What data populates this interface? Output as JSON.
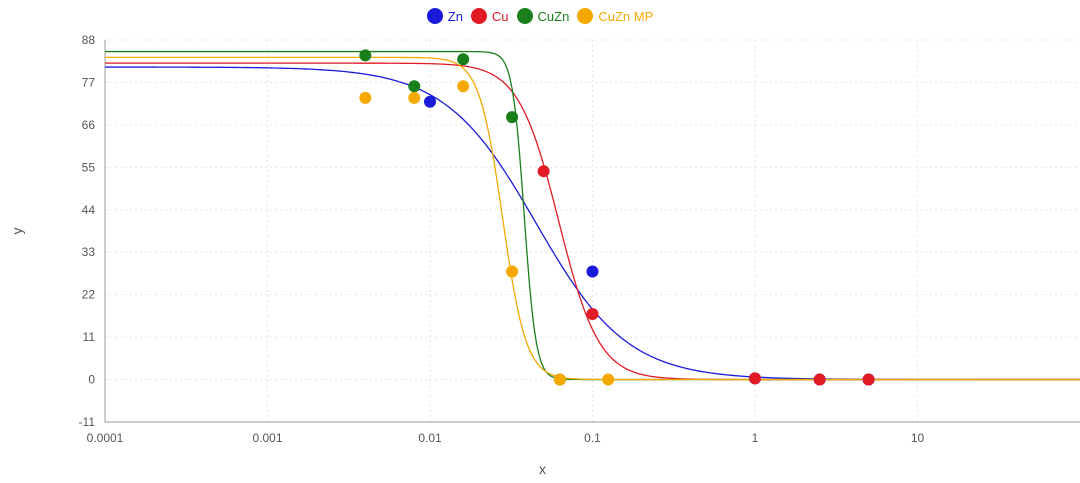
{
  "chart_data": {
    "type": "line",
    "title": "",
    "xlabel": "x",
    "ylabel": "y",
    "x_scale": "log",
    "xlim": [
      0.0001,
      100
    ],
    "ylim": [
      -11,
      88
    ],
    "x_ticks": [
      0.0001,
      0.001,
      0.01,
      0.1,
      1,
      10
    ],
    "x_tick_labels": [
      "0.0001",
      "0.001",
      "0.01",
      "0.1",
      "1",
      "10"
    ],
    "y_ticks": [
      -11,
      0,
      11,
      22,
      33,
      44,
      55,
      66,
      77,
      88
    ],
    "y_tick_labels": [
      "-11",
      "0",
      "11",
      "22",
      "33",
      "44",
      "55",
      "66",
      "77",
      "88"
    ],
    "grid": true,
    "legend_position": "top-center",
    "series": [
      {
        "name": "Zn",
        "color": "#1a1adb",
        "points": [
          {
            "x": 0.01,
            "y": 72
          },
          {
            "x": 0.1,
            "y": 28
          },
          {
            "x": 1,
            "y": 0.3
          },
          {
            "x": 2.5,
            "y": 0
          },
          {
            "x": 5,
            "y": 0
          }
        ],
        "fit": {
          "top": 81,
          "ec50": 0.045,
          "hill": 1.55
        }
      },
      {
        "name": "Cu",
        "color": "#e01b24",
        "points": [
          {
            "x": 0.05,
            "y": 54
          },
          {
            "x": 0.1,
            "y": 17
          },
          {
            "x": 1,
            "y": 0.3
          },
          {
            "x": 2.5,
            "y": 0
          },
          {
            "x": 5,
            "y": 0
          }
        ],
        "fit": {
          "top": 82,
          "ec50": 0.062,
          "hill": 3.5
        }
      },
      {
        "name": "CuZn",
        "color": "#1a7f1a",
        "points": [
          {
            "x": 0.004,
            "y": 84
          },
          {
            "x": 0.008,
            "y": 76
          },
          {
            "x": 0.016,
            "y": 83
          },
          {
            "x": 0.032,
            "y": 68
          },
          {
            "x": 0.063,
            "y": 0
          }
        ],
        "fit": {
          "top": 85,
          "ec50": 0.038,
          "hill": 12
        }
      },
      {
        "name": "CuZn MP",
        "color": "#f5a800",
        "points": [
          {
            "x": 0.004,
            "y": 73
          },
          {
            "x": 0.008,
            "y": 73
          },
          {
            "x": 0.016,
            "y": 76
          },
          {
            "x": 0.032,
            "y": 28
          },
          {
            "x": 0.063,
            "y": 0
          },
          {
            "x": 0.125,
            "y": 0
          }
        ],
        "fit": {
          "top": 83.5,
          "ec50": 0.028,
          "hill": 6
        }
      }
    ]
  }
}
